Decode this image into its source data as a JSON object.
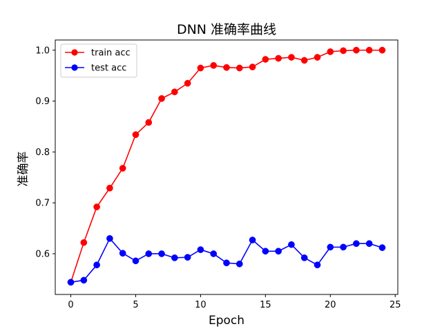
{
  "chart_data": {
    "type": "line",
    "title": "DNN 准确率曲线",
    "xlabel": "Epoch",
    "ylabel": "准确率",
    "xlim": [
      -1.2,
      25.2
    ],
    "ylim": [
      0.52,
      1.02
    ],
    "xticks": [
      0,
      5,
      10,
      15,
      20,
      25
    ],
    "yticks": [
      0.6,
      0.7,
      0.8,
      0.9,
      1.0
    ],
    "xtick_labels": [
      "0",
      "5",
      "10",
      "15",
      "20",
      "25"
    ],
    "ytick_labels": [
      "0.6",
      "0.7",
      "0.8",
      "0.9",
      "1.0"
    ],
    "grid": false,
    "legend_position": "upper-left",
    "x": [
      0,
      1,
      2,
      3,
      4,
      5,
      6,
      7,
      8,
      9,
      10,
      11,
      12,
      13,
      14,
      15,
      16,
      17,
      18,
      19,
      20,
      21,
      22,
      23,
      24
    ],
    "series": [
      {
        "name": "train acc",
        "color": "#ff0000",
        "marker": "circle",
        "values": [
          0.544,
          0.622,
          0.692,
          0.729,
          0.768,
          0.834,
          0.858,
          0.905,
          0.918,
          0.935,
          0.965,
          0.97,
          0.966,
          0.965,
          0.967,
          0.982,
          0.984,
          0.986,
          0.98,
          0.986,
          0.997,
          0.999,
          1.0,
          1.0,
          1.0
        ]
      },
      {
        "name": "test acc",
        "color": "#0000ff",
        "marker": "circle",
        "values": [
          0.544,
          0.548,
          0.578,
          0.63,
          0.601,
          0.586,
          0.6,
          0.6,
          0.592,
          0.593,
          0.608,
          0.6,
          0.582,
          0.58,
          0.627,
          0.605,
          0.605,
          0.618,
          0.592,
          0.578,
          0.613,
          0.613,
          0.62,
          0.62,
          0.612
        ]
      }
    ]
  }
}
